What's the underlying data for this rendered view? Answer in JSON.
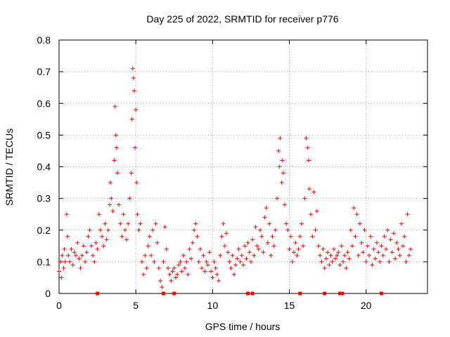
{
  "chart_data": {
    "type": "scatter",
    "title": "Day 225 of 2022, SRMTID for receiver p776",
    "xlabel": "GPS time / hours",
    "ylabel": "SRMTID / TECUs",
    "xlim": [
      0,
      24
    ],
    "ylim": [
      0,
      0.8
    ],
    "x_ticks": [
      0,
      5,
      10,
      15,
      20
    ],
    "y_ticks": [
      0,
      0.1,
      0.2,
      0.3,
      0.4,
      0.5,
      0.6,
      0.7,
      0.8
    ],
    "x_tick_labels": [
      "0",
      "5",
      "10",
      "15",
      "20"
    ],
    "y_tick_labels": [
      "0",
      "0.1",
      "0.2",
      "0.3",
      "0.4",
      "0.5",
      "0.6",
      "0.7",
      "0.8"
    ],
    "grid": true,
    "marker": "plus",
    "series": [
      {
        "name": "SRMTID",
        "color": "#ff0000",
        "x": [
          0.0,
          0.1,
          0.15,
          0.2,
          0.3,
          0.35,
          0.4,
          0.5,
          0.55,
          0.6,
          0.7,
          0.8,
          0.9,
          1.0,
          1.1,
          1.2,
          1.3,
          1.4,
          1.5,
          1.6,
          1.7,
          1.8,
          1.9,
          2.0,
          2.1,
          2.2,
          2.3,
          2.4,
          2.5,
          2.6,
          2.7,
          2.8,
          2.9,
          3.0,
          3.1,
          3.2,
          3.3,
          3.35,
          3.4,
          3.5,
          3.6,
          3.65,
          3.7,
          3.75,
          3.8,
          3.9,
          4.0,
          4.1,
          4.2,
          4.3,
          4.4,
          4.5,
          4.6,
          4.7,
          4.75,
          4.8,
          4.85,
          4.9,
          4.95,
          5.0,
          5.05,
          5.1,
          5.2,
          5.3,
          5.4,
          5.5,
          5.6,
          5.7,
          5.8,
          5.9,
          6.0,
          6.1,
          6.2,
          6.3,
          6.4,
          6.5,
          6.6,
          6.7,
          6.8,
          6.9,
          7.0,
          7.1,
          7.2,
          7.3,
          7.4,
          7.5,
          7.6,
          7.7,
          7.8,
          7.9,
          8.0,
          8.1,
          8.2,
          8.3,
          8.4,
          8.5,
          8.6,
          8.7,
          8.8,
          8.9,
          9.0,
          9.1,
          9.2,
          9.3,
          9.4,
          9.5,
          9.6,
          9.7,
          9.8,
          9.9,
          10.0,
          10.1,
          10.2,
          10.3,
          10.4,
          10.5,
          10.6,
          10.7,
          10.8,
          10.9,
          11.0,
          11.1,
          11.2,
          11.3,
          11.4,
          11.5,
          11.6,
          11.7,
          11.8,
          11.9,
          12.0,
          12.1,
          12.2,
          12.3,
          12.4,
          12.5,
          12.6,
          12.7,
          12.8,
          12.9,
          13.0,
          13.1,
          13.2,
          13.3,
          13.4,
          13.5,
          13.6,
          13.7,
          13.8,
          13.9,
          14.0,
          14.1,
          14.2,
          14.3,
          14.35,
          14.4,
          14.5,
          14.55,
          14.6,
          14.7,
          14.8,
          14.9,
          15.0,
          15.1,
          15.2,
          15.3,
          15.4,
          15.5,
          15.6,
          15.7,
          15.8,
          15.9,
          16.0,
          16.1,
          16.2,
          16.25,
          16.3,
          16.4,
          16.5,
          16.6,
          16.7,
          16.8,
          16.9,
          17.0,
          17.1,
          17.2,
          17.3,
          17.4,
          17.5,
          17.6,
          17.7,
          17.8,
          17.9,
          18.0,
          18.1,
          18.2,
          18.3,
          18.4,
          18.5,
          18.6,
          18.7,
          18.8,
          18.9,
          19.0,
          19.1,
          19.2,
          19.3,
          19.4,
          19.5,
          19.6,
          19.7,
          19.8,
          19.9,
          20.0,
          20.1,
          20.2,
          20.3,
          20.4,
          20.5,
          20.6,
          20.7,
          20.8,
          20.9,
          21.0,
          21.1,
          21.2,
          21.3,
          21.4,
          21.5,
          21.6,
          21.7,
          21.8,
          21.9,
          22.0,
          22.1,
          22.2,
          22.3,
          22.4,
          22.5,
          22.6,
          22.7,
          22.8,
          22.9
        ],
        "y": [
          0.07,
          0.1,
          0.05,
          0.12,
          0.08,
          0.14,
          0.1,
          0.25,
          0.18,
          0.12,
          0.1,
          0.14,
          0.09,
          0.13,
          0.12,
          0.16,
          0.11,
          0.08,
          0.12,
          0.15,
          0.1,
          0.13,
          0.18,
          0.2,
          0.15,
          0.12,
          0.1,
          0.16,
          0.14,
          0.25,
          0.2,
          0.18,
          0.15,
          0.22,
          0.17,
          0.2,
          0.28,
          0.35,
          0.3,
          0.26,
          0.42,
          0.59,
          0.5,
          0.46,
          0.38,
          0.28,
          0.22,
          0.18,
          0.25,
          0.2,
          0.17,
          0.22,
          0.3,
          0.38,
          0.55,
          0.71,
          0.68,
          0.64,
          0.46,
          0.58,
          0.35,
          0.25,
          0.2,
          0.22,
          0.1,
          0.06,
          0.12,
          0.08,
          0.15,
          0.18,
          0.12,
          0.2,
          0.1,
          0.22,
          0.16,
          0.08,
          0.04,
          0.02,
          0.1,
          0.21,
          0.14,
          0.08,
          0.06,
          0.04,
          0.07,
          0.08,
          0.05,
          0.06,
          0.09,
          0.1,
          0.07,
          0.12,
          0.08,
          0.1,
          0.06,
          0.14,
          0.11,
          0.16,
          0.2,
          0.22,
          0.18,
          0.1,
          0.14,
          0.08,
          0.12,
          0.07,
          0.1,
          0.09,
          0.13,
          0.07,
          0.05,
          0.1,
          0.08,
          0.06,
          0.04,
          0.12,
          0.18,
          0.22,
          0.15,
          0.19,
          0.13,
          0.1,
          0.08,
          0.12,
          0.06,
          0.09,
          0.11,
          0.14,
          0.1,
          0.12,
          0.09,
          0.15,
          0.11,
          0.16,
          0.13,
          0.1,
          0.17,
          0.12,
          0.21,
          0.15,
          0.14,
          0.2,
          0.18,
          0.13,
          0.24,
          0.27,
          0.16,
          0.22,
          0.12,
          0.18,
          0.15,
          0.2,
          0.3,
          0.45,
          0.4,
          0.49,
          0.35,
          0.42,
          0.38,
          0.28,
          0.22,
          0.2,
          0.14,
          0.18,
          0.1,
          0.13,
          0.16,
          0.12,
          0.14,
          0.18,
          0.22,
          0.15,
          0.3,
          0.49,
          0.46,
          0.42,
          0.33,
          0.25,
          0.18,
          0.32,
          0.2,
          0.26,
          0.15,
          0.12,
          0.1,
          0.14,
          0.08,
          0.11,
          0.13,
          0.09,
          0.12,
          0.1,
          0.14,
          0.11,
          0.12,
          0.13,
          0.09,
          0.15,
          0.1,
          0.12,
          0.08,
          0.13,
          0.11,
          0.2,
          0.15,
          0.27,
          0.18,
          0.25,
          0.12,
          0.22,
          0.16,
          0.13,
          0.2,
          0.1,
          0.15,
          0.12,
          0.18,
          0.09,
          0.14,
          0.11,
          0.16,
          0.13,
          0.1,
          0.15,
          0.12,
          0.18,
          0.14,
          0.2,
          0.1,
          0.17,
          0.13,
          0.19,
          0.11,
          0.16,
          0.14,
          0.12,
          0.22,
          0.15,
          0.18,
          0.1,
          0.25,
          0.12,
          0.14
        ]
      }
    ],
    "bottom_markers_x": [
      2.5,
      6.8,
      7.5,
      12.3,
      12.6,
      15.7,
      17.3,
      18.3,
      18.45,
      21.0
    ]
  }
}
